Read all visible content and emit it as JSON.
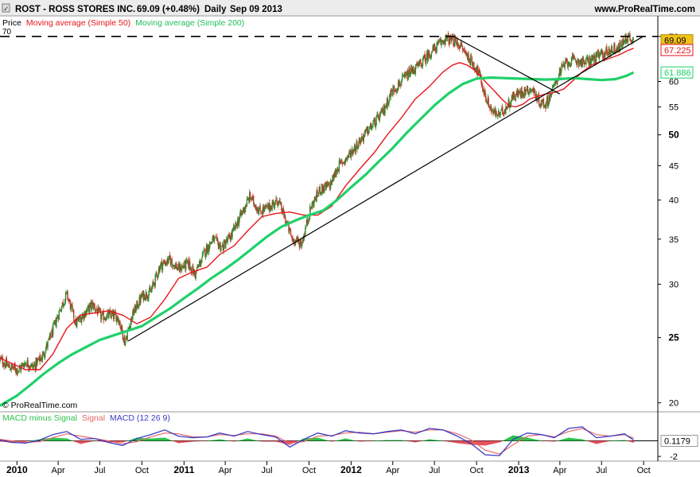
{
  "header": {
    "title": "ROST - ROSS STORES INC.",
    "quote": "69.09 (+0.48%)",
    "period": "Daily",
    "date": "Sep 09 2013",
    "site": "www.ProRealTime.com"
  },
  "price_legend": {
    "price": "Price",
    "ma50": "Moving average (Simple 50)",
    "ma200": "Moving average (Simple 200)"
  },
  "watermark": "© ProRealTime.com",
  "macd_legend": {
    "hist": "MACD minus Signal",
    "signal": "Signal",
    "macd": "MACD (12 26 9)"
  },
  "colors": {
    "price_up": "#2e8b2e",
    "price_down": "#c0392b",
    "ma50": "#e8151b",
    "ma200": "#1fd16a",
    "trend": "#000000",
    "macd": "#3b3bc4",
    "signal": "#e56a6a",
    "hist_pos": "#2fc24a",
    "hist_neg": "#e8515d",
    "last_price_box": "#f2c21a"
  },
  "chart_data": [
    {
      "type": "line",
      "panel": "price",
      "scale": "log",
      "ylim": [
        19.5,
        71.5
      ],
      "yticks": [
        20,
        25,
        30,
        35,
        40,
        45,
        50,
        55,
        60,
        70
      ],
      "bold_ticks": [
        25,
        50
      ],
      "xticks": [
        "2010",
        "Apr",
        "Jul",
        "Oct",
        "2011",
        "Apr",
        "Jul",
        "Oct",
        "2012",
        "Apr",
        "Jul",
        "Oct",
        "2013",
        "Apr",
        "Jul",
        "Oct"
      ],
      "bold_xticks": [
        "2010",
        "2011",
        "2012",
        "2013"
      ],
      "x_start": "2009-11-25",
      "x_end": "2013-11-01",
      "last_price": 69.09,
      "ma50_last": 67.225,
      "ma200_last": 61.886,
      "horizontal_line": 70,
      "series": [
        {
          "name": "Price",
          "x": [
            "2009-11-25",
            "2009-12-15",
            "2010-01-05",
            "2010-01-20",
            "2010-02-05",
            "2010-02-25",
            "2010-03-15",
            "2010-04-05",
            "2010-04-20",
            "2010-05-10",
            "2010-05-25",
            "2010-06-15",
            "2010-07-05",
            "2010-07-25",
            "2010-08-10",
            "2010-08-25",
            "2010-09-10",
            "2010-10-01",
            "2010-10-20",
            "2010-11-10",
            "2010-12-01",
            "2010-12-20",
            "2011-01-10",
            "2011-01-25",
            "2011-02-15",
            "2011-03-05",
            "2011-03-25",
            "2011-04-15",
            "2011-05-05",
            "2011-05-25",
            "2011-06-15",
            "2011-07-05",
            "2011-07-25",
            "2011-08-10",
            "2011-08-25",
            "2011-09-15",
            "2011-10-05",
            "2011-10-25",
            "2011-11-15",
            "2011-12-05",
            "2011-12-20",
            "2012-01-10",
            "2012-01-30",
            "2012-02-20",
            "2012-03-10",
            "2012-03-30",
            "2012-04-20",
            "2012-05-10",
            "2012-05-30",
            "2012-06-20",
            "2012-07-10",
            "2012-07-25",
            "2012-08-10",
            "2012-08-25",
            "2012-09-15",
            "2012-10-05",
            "2012-10-20",
            "2012-11-05",
            "2012-11-20",
            "2012-12-05",
            "2012-12-20",
            "2013-01-10",
            "2013-01-30",
            "2013-02-15",
            "2013-03-01",
            "2013-03-15",
            "2013-04-01",
            "2013-04-15",
            "2013-05-05",
            "2013-05-25",
            "2013-06-15",
            "2013-07-05",
            "2013-07-25",
            "2013-08-10",
            "2013-08-25",
            "2013-09-09"
          ],
          "values": [
            23.2,
            22.6,
            22.4,
            23.0,
            22.6,
            23.4,
            25.0,
            27.5,
            29.0,
            26.2,
            27.0,
            28.0,
            26.8,
            27.0,
            26.8,
            24.6,
            27.0,
            28.8,
            29.2,
            32.0,
            32.6,
            31.6,
            32.2,
            31.0,
            33.5,
            35.0,
            34.0,
            35.5,
            38.0,
            40.5,
            38.5,
            39.0,
            40.0,
            37.5,
            35.0,
            34.5,
            39.0,
            41.5,
            42.0,
            45.0,
            46.0,
            48.0,
            50.0,
            52.0,
            54.0,
            58.0,
            60.0,
            62.0,
            63.5,
            66.0,
            68.0,
            69.5,
            69.0,
            68.0,
            65.0,
            62.0,
            57.0,
            54.0,
            53.5,
            55.0,
            57.0,
            58.0,
            58.5,
            56.0,
            55.5,
            58.0,
            62.0,
            64.0,
            64.5,
            64.0,
            65.0,
            66.0,
            67.0,
            67.5,
            70.0,
            69.09
          ]
        },
        {
          "name": "Moving average (Simple 50)",
          "x": [
            "2009-11-25",
            "2009-12-20",
            "2010-01-20",
            "2010-02-20",
            "2010-03-20",
            "2010-04-20",
            "2010-05-20",
            "2010-06-20",
            "2010-07-20",
            "2010-08-20",
            "2010-09-20",
            "2010-10-20",
            "2010-11-20",
            "2010-12-20",
            "2011-01-20",
            "2011-02-20",
            "2011-03-20",
            "2011-04-20",
            "2011-05-20",
            "2011-06-20",
            "2011-07-20",
            "2011-08-20",
            "2011-09-20",
            "2011-10-20",
            "2011-11-20",
            "2011-12-20",
            "2012-01-20",
            "2012-02-20",
            "2012-03-20",
            "2012-04-20",
            "2012-05-20",
            "2012-06-20",
            "2012-07-20",
            "2012-08-10",
            "2012-08-25",
            "2012-09-10",
            "2012-09-25",
            "2012-10-10",
            "2012-10-25",
            "2012-11-10",
            "2012-11-25",
            "2012-12-10",
            "2012-12-25",
            "2013-01-10",
            "2013-01-25",
            "2013-02-10",
            "2013-03-01",
            "2013-03-20",
            "2013-04-10",
            "2013-05-01",
            "2013-05-20",
            "2013-06-10",
            "2013-07-01",
            "2013-07-20",
            "2013-08-10",
            "2013-08-25",
            "2013-09-09"
          ],
          "values": [
            23.3,
            22.9,
            22.4,
            22.4,
            23.6,
            25.8,
            27.0,
            27.2,
            27.4,
            27.0,
            26.2,
            26.8,
            28.5,
            30.6,
            31.3,
            31.8,
            33.2,
            34.2,
            36.0,
            37.8,
            38.2,
            38.4,
            38.0,
            38.0,
            39.2,
            42.0,
            44.5,
            47.0,
            50.0,
            53.0,
            56.5,
            59.0,
            62.0,
            63.5,
            64.0,
            63.5,
            62.5,
            61.0,
            59.5,
            58.0,
            56.5,
            55.3,
            55.0,
            55.5,
            56.5,
            57.0,
            57.5,
            57.8,
            58.5,
            60.3,
            62.0,
            63.5,
            64.3,
            65.0,
            65.8,
            66.6,
            67.225
          ]
        },
        {
          "name": "Moving average (Simple 200)",
          "x": [
            "2009-11-25",
            "2010-01-01",
            "2010-02-01",
            "2010-03-01",
            "2010-04-01",
            "2010-05-01",
            "2010-06-01",
            "2010-07-01",
            "2010-08-01",
            "2010-09-01",
            "2010-10-01",
            "2010-11-01",
            "2010-12-01",
            "2011-01-01",
            "2011-02-01",
            "2011-03-01",
            "2011-04-01",
            "2011-05-01",
            "2011-06-01",
            "2011-07-01",
            "2011-08-01",
            "2011-09-01",
            "2011-10-01",
            "2011-11-01",
            "2011-12-01",
            "2012-01-01",
            "2012-02-01",
            "2012-03-01",
            "2012-04-01",
            "2012-05-01",
            "2012-06-01",
            "2012-07-01",
            "2012-08-01",
            "2012-09-01",
            "2012-10-01",
            "2012-11-01",
            "2012-12-01",
            "2013-01-01",
            "2013-02-01",
            "2013-03-01",
            "2013-04-01",
            "2013-05-01",
            "2013-06-01",
            "2013-07-01",
            "2013-08-01",
            "2013-08-25",
            "2013-09-09"
          ],
          "values": [
            19.8,
            20.5,
            21.3,
            22.1,
            22.9,
            23.6,
            24.2,
            24.8,
            25.2,
            25.6,
            26.0,
            26.8,
            27.6,
            28.6,
            29.6,
            30.6,
            31.6,
            32.7,
            34.0,
            35.3,
            36.5,
            37.3,
            38.0,
            38.6,
            40.0,
            41.8,
            43.6,
            45.6,
            47.8,
            50.3,
            52.8,
            55.3,
            57.6,
            59.5,
            60.6,
            60.8,
            60.7,
            60.6,
            60.5,
            60.4,
            60.5,
            60.7,
            60.5,
            60.3,
            60.5,
            61.2,
            61.886
          ]
        }
      ],
      "trendlines": [
        {
          "from": [
            "2010-09-01",
            24.7
          ],
          "to": [
            "2013-09-30",
            70.0
          ]
        },
        {
          "from": [
            "2012-08-15",
            69.8
          ],
          "to": [
            "2013-04-01",
            57.5
          ]
        }
      ]
    },
    {
      "type": "line",
      "panel": "macd",
      "ylim": [
        -2.4,
        2.3
      ],
      "yticks": [
        -2
      ],
      "zero_line": 0,
      "last_value": 0.1179,
      "series": [
        {
          "name": "MACD (12 26 9)",
          "x": [
            "2009-11-25",
            "2009-12-20",
            "2010-01-20",
            "2010-02-20",
            "2010-03-20",
            "2010-04-20",
            "2010-05-20",
            "2010-06-20",
            "2010-07-20",
            "2010-08-20",
            "2010-09-20",
            "2010-10-20",
            "2010-11-20",
            "2010-12-20",
            "2011-01-20",
            "2011-02-20",
            "2011-03-20",
            "2011-04-20",
            "2011-05-20",
            "2011-06-20",
            "2011-07-20",
            "2011-08-20",
            "2011-09-20",
            "2011-10-20",
            "2011-11-20",
            "2011-12-20",
            "2012-01-20",
            "2012-02-20",
            "2012-03-20",
            "2012-04-20",
            "2012-05-20",
            "2012-06-20",
            "2012-07-20",
            "2012-08-20",
            "2012-09-20",
            "2012-10-20",
            "2012-11-20",
            "2012-12-20",
            "2013-01-20",
            "2013-02-20",
            "2013-03-20",
            "2013-04-20",
            "2013-05-20",
            "2013-06-20",
            "2013-07-20",
            "2013-08-20",
            "2013-09-09"
          ],
          "values": [
            0.1,
            -0.2,
            -0.3,
            0.1,
            0.8,
            1.2,
            0.2,
            0.3,
            -0.2,
            -0.6,
            0.3,
            0.8,
            1.4,
            0.6,
            0.4,
            0.5,
            1.0,
            0.6,
            1.2,
            0.8,
            0.5,
            -0.8,
            0.2,
            1.0,
            0.6,
            1.3,
            1.0,
            0.9,
            1.2,
            1.4,
            0.9,
            1.6,
            1.4,
            0.6,
            -0.4,
            -1.8,
            -1.9,
            0.2,
            1.0,
            0.8,
            0.4,
            1.6,
            1.8,
            0.4,
            0.6,
            0.9,
            0.1179
          ]
        },
        {
          "name": "Signal",
          "x": [
            "2009-11-25",
            "2009-12-20",
            "2010-01-20",
            "2010-02-20",
            "2010-03-20",
            "2010-04-20",
            "2010-05-20",
            "2010-06-20",
            "2010-07-20",
            "2010-08-20",
            "2010-09-20",
            "2010-10-20",
            "2010-11-20",
            "2010-12-20",
            "2011-01-20",
            "2011-02-20",
            "2011-03-20",
            "2011-04-20",
            "2011-05-20",
            "2011-06-20",
            "2011-07-20",
            "2011-08-20",
            "2011-09-20",
            "2011-10-20",
            "2011-11-20",
            "2011-12-20",
            "2012-01-20",
            "2012-02-20",
            "2012-03-20",
            "2012-04-20",
            "2012-05-20",
            "2012-06-20",
            "2012-07-20",
            "2012-08-20",
            "2012-09-20",
            "2012-10-20",
            "2012-11-20",
            "2012-12-20",
            "2013-01-20",
            "2013-02-20",
            "2013-03-20",
            "2013-04-20",
            "2013-05-20",
            "2013-06-20",
            "2013-07-20",
            "2013-08-20",
            "2013-09-09"
          ],
          "values": [
            0.2,
            0.0,
            -0.2,
            -0.1,
            0.4,
            0.9,
            0.6,
            0.3,
            0.0,
            -0.4,
            -0.1,
            0.5,
            1.0,
            0.9,
            0.5,
            0.5,
            0.8,
            0.7,
            0.9,
            0.9,
            0.6,
            -0.3,
            -0.1,
            0.6,
            0.7,
            1.0,
            1.1,
            0.9,
            1.1,
            1.3,
            1.1,
            1.4,
            1.4,
            0.9,
            0.1,
            -1.2,
            -1.7,
            -0.5,
            0.6,
            0.8,
            0.5,
            1.2,
            1.6,
            0.8,
            0.6,
            0.8,
            0.35
          ]
        }
      ]
    }
  ]
}
